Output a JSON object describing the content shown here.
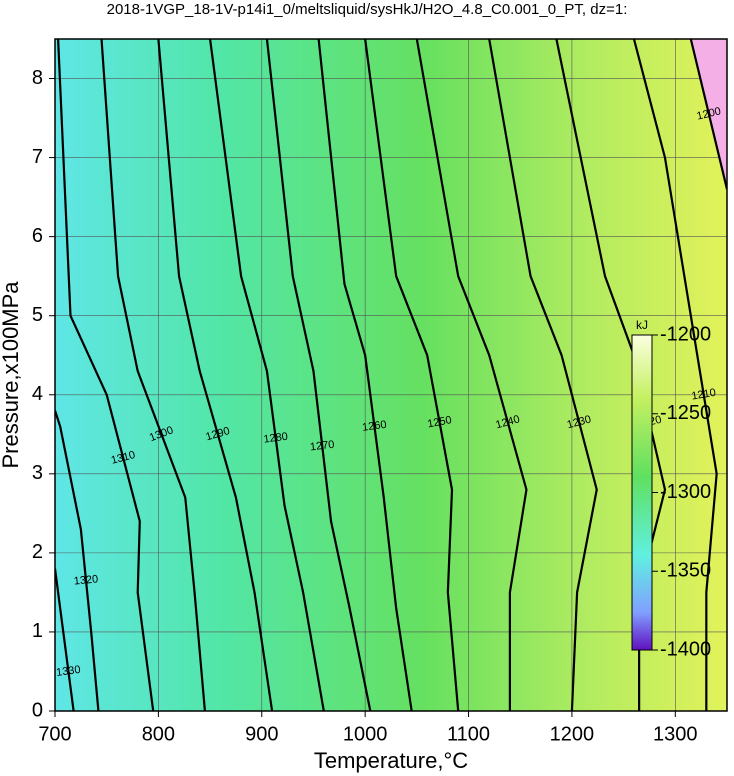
{
  "chart_data": {
    "type": "contour",
    "title": "2018-1VGP_18-1V-p14i1_0/meltsliquid/sysHkJ/H2O_4.8_C0.001_0_PT, dz=1:",
    "x_label": "Temperature,°C",
    "y_label": "Pressure,x100MPa",
    "xlim": [
      700,
      1350
    ],
    "ylim": [
      0,
      8.5
    ],
    "xticks": [
      700,
      800,
      900,
      1000,
      1100,
      1200,
      1300
    ],
    "yticks": [
      0,
      1,
      2,
      3,
      4,
      5,
      6,
      7,
      8
    ],
    "grid": true,
    "contours": [
      {
        "level": 1330,
        "x": [
          718,
          708,
          700
        ],
        "y": [
          0,
          1,
          1.8
        ]
      },
      {
        "level": 1320,
        "x": [
          742,
          735,
          725,
          705,
          700
        ],
        "y": [
          0,
          1,
          2.3,
          3.6,
          3.8
        ]
      },
      {
        "level": 1310,
        "x": [
          795,
          780,
          782,
          750,
          715,
          703
        ],
        "y": [
          0,
          1.5,
          2.4,
          4,
          5,
          8.5
        ]
      },
      {
        "level": 1300,
        "x": [
          845,
          835,
          826,
          780,
          761,
          745
        ],
        "y": [
          0,
          1.5,
          2.7,
          4.3,
          5.5,
          8.5
        ]
      },
      {
        "level": 1290,
        "x": [
          910,
          893,
          875,
          840,
          820,
          800
        ],
        "y": [
          0,
          1.5,
          2.7,
          4.3,
          5.5,
          8.5
        ]
      },
      {
        "level": 1280,
        "x": [
          960,
          940,
          922,
          905,
          880,
          850
        ],
        "y": [
          0,
          1.5,
          2.6,
          4.3,
          5.5,
          8.5
        ]
      },
      {
        "level": 1270,
        "x": [
          1005,
          985,
          967,
          950,
          930,
          905
        ],
        "y": [
          0,
          1.3,
          2.4,
          4.3,
          5.5,
          8.5
        ]
      },
      {
        "level": 1260,
        "x": [
          1045,
          1030,
          1018,
          1000,
          980,
          955
        ],
        "y": [
          0,
          1.3,
          2.7,
          4.5,
          5.4,
          8.5
        ]
      },
      {
        "level": 1250,
        "x": [
          1090,
          1080,
          1084,
          1060,
          1030,
          1000
        ],
        "y": [
          0,
          1.5,
          2.8,
          4.5,
          5.5,
          8.5
        ]
      },
      {
        "level": 1240,
        "x": [
          1140,
          1140,
          1156,
          1120,
          1090,
          1050
        ],
        "y": [
          0,
          1.5,
          2.8,
          4.5,
          5.5,
          8.5
        ]
      },
      {
        "level": 1230,
        "x": [
          1200,
          1205,
          1224,
          1190,
          1160,
          1120
        ],
        "y": [
          0,
          1.5,
          2.8,
          4.5,
          5.5,
          8.5
        ]
      },
      {
        "level": 1220,
        "x": [
          1265,
          1265,
          1290,
          1260,
          1232,
          1185
        ],
        "y": [
          0,
          1.5,
          2.8,
          4.5,
          5.5,
          8.5
        ]
      },
      {
        "level": 1210,
        "x": [
          1330,
          1330,
          1340,
          1315,
          1290,
          1260
        ],
        "y": [
          0,
          1.5,
          3,
          5,
          7,
          8.5
        ]
      },
      {
        "level": 1200,
        "x": [
          1350,
          1315
        ],
        "y": [
          6.6,
          8.5
        ]
      }
    ],
    "colorbar": {
      "unit": "kJ",
      "lim": [
        -1400,
        -1200
      ],
      "ticks": [
        -1200,
        -1250,
        -1300,
        -1350,
        -1400
      ]
    }
  }
}
